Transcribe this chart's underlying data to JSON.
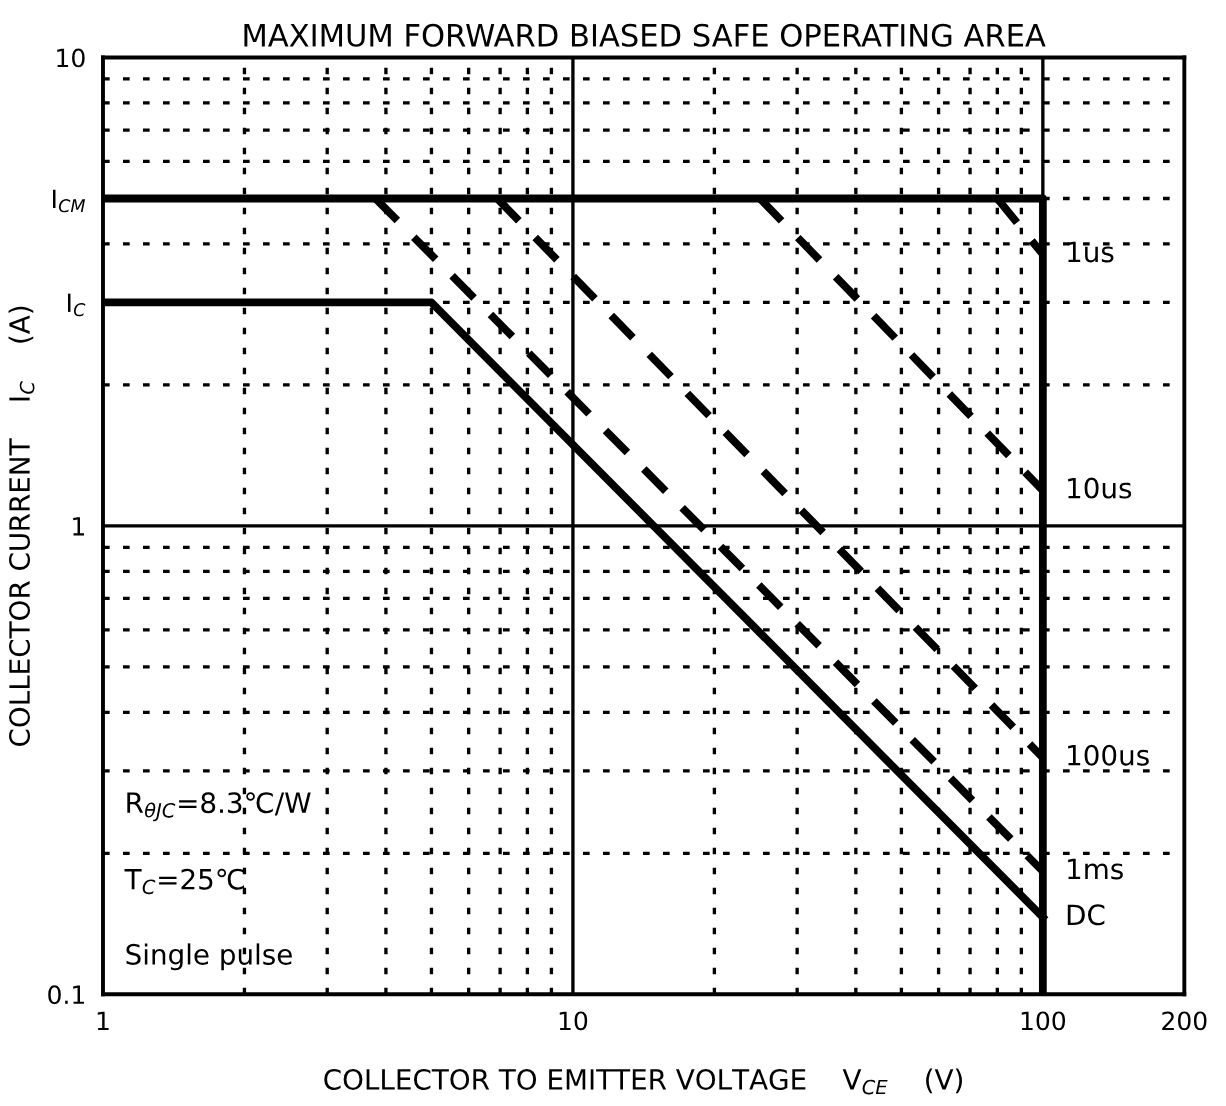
{
  "chart_data": {
    "type": "line",
    "title": "MAXIMUM FORWARD BIASED SAFE OPERATING AREA",
    "xlabel": "COLLECTOR TO EMITTER VOLTAGE    V$_{CE}$    (V)",
    "ylabel": "COLLECTOR CURRENT    I$_{C}$    (A)",
    "log": "xy",
    "xlim": [
      1,
      200
    ],
    "ylim": [
      0.1,
      10
    ],
    "xticks": [
      1,
      10,
      100,
      200
    ],
    "yticks": [
      0.1,
      1,
      10,
      {
        "value": 5,
        "label": "I$_{CM}$"
      },
      {
        "value": 3,
        "label": "I$_{C}$"
      }
    ],
    "grid": true,
    "legend": false,
    "marker": "none",
    "series": [
      {
        "color": "#000000",
        "line_style": "solid",
        "x": [
          1,
          100,
          100
        ],
        "values": [
          5,
          5,
          0.1
        ]
      },
      {
        "name": "DC",
        "color": "#000000",
        "line_style": "solid",
        "x": [
          1,
          5,
          100
        ],
        "values": [
          3,
          3,
          0.146
        ]
      },
      {
        "name": "1ms",
        "color": "#000000",
        "line_style": "dashed",
        "x": [
          3.8,
          100
        ],
        "values": [
          5,
          0.183
        ]
      },
      {
        "name": "100us",
        "color": "#000000",
        "line_style": "dashed",
        "x": [
          6.9,
          100
        ],
        "values": [
          5,
          0.32
        ]
      },
      {
        "name": "10us",
        "color": "#000000",
        "line_style": "dashed",
        "x": [
          25,
          100
        ],
        "values": [
          5,
          1.19
        ]
      },
      {
        "name": "1us",
        "color": "#000000",
        "line_style": "dashed",
        "x": [
          80,
          100
        ],
        "values": [
          5,
          3.8
        ]
      }
    ],
    "annotations": [
      "R$_{θJC}$=8.3℃/W",
      "T$_{C}$=25℃",
      "Single pulse"
    ]
  }
}
